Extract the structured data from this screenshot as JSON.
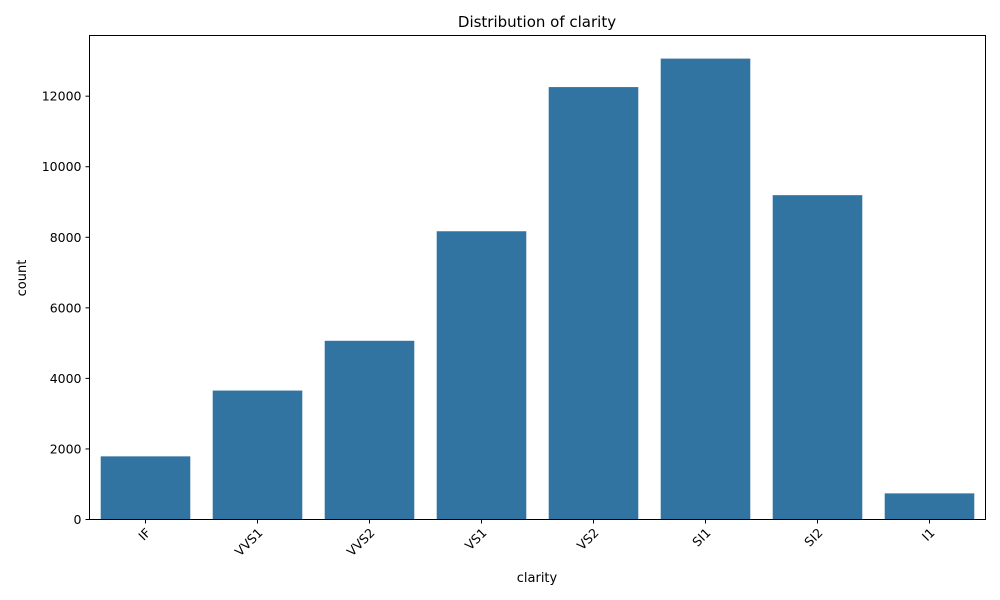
{
  "chart_data": {
    "type": "bar",
    "title": "Distribution of clarity",
    "xlabel": "clarity",
    "ylabel": "count",
    "categories": [
      "IF",
      "VVS1",
      "VVS2",
      "VS1",
      "VS2",
      "SI1",
      "SI2",
      "I1"
    ],
    "values": [
      1790,
      3655,
      5066,
      8171,
      12258,
      13065,
      9194,
      741
    ],
    "ylim": [
      0,
      13720
    ],
    "yticks": [
      "0",
      "2000",
      "4000",
      "6000",
      "8000",
      "10000",
      "12000"
    ],
    "grid": false,
    "legend": "none",
    "bar_color": "#3274a1"
  }
}
